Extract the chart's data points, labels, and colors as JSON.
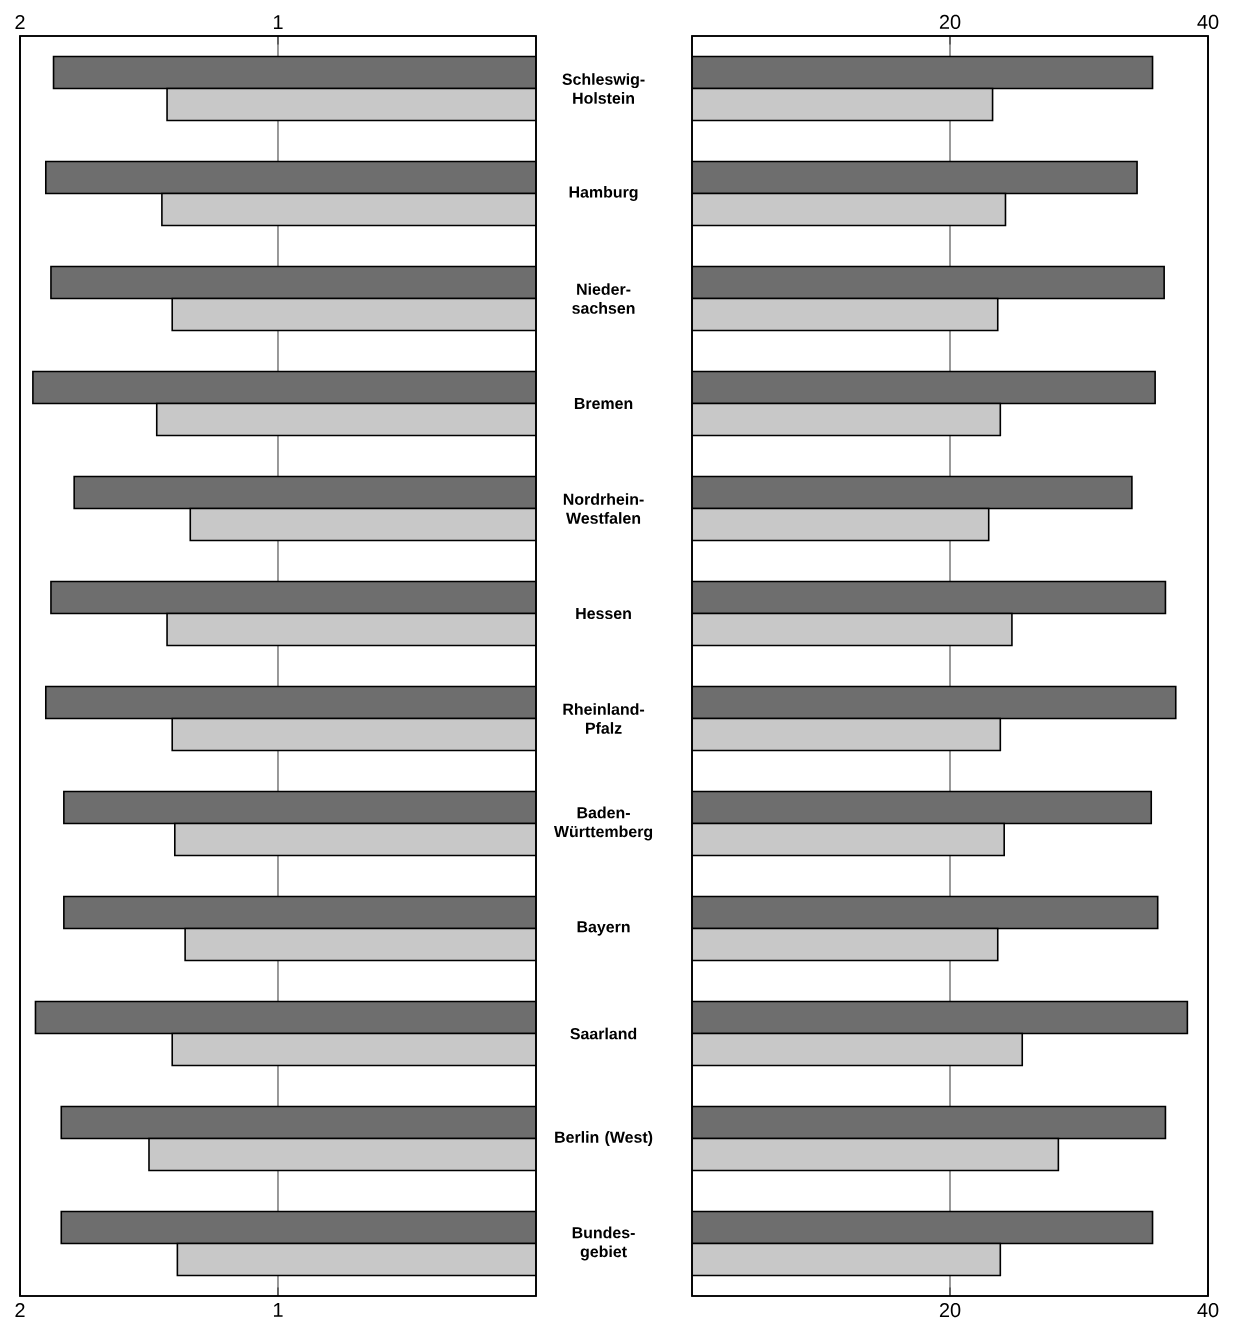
{
  "chart_data": [
    {
      "type": "bar",
      "orientation": "horizontal",
      "categories": [
        "Schleswig-Holstein",
        "Hamburg",
        "Nieder-sachsen",
        "Bremen",
        "Nordrhein-Westfalen",
        "Hessen",
        "Rheinland-Pfalz",
        "Baden-Württemberg",
        "Bayern",
        "Saarland",
        "Berlin (West)",
        "Bundes-gebiet"
      ],
      "series": [
        {
          "color": "#6e6e6e",
          "values": [
            1.87,
            1.9,
            1.88,
            1.95,
            1.79,
            1.88,
            1.9,
            1.83,
            1.83,
            1.94,
            1.84,
            1.84
          ]
        },
        {
          "color": "#c8c8c8",
          "values": [
            1.43,
            1.45,
            1.41,
            1.47,
            1.34,
            1.43,
            1.41,
            1.4,
            1.36,
            1.41,
            1.5,
            1.39
          ]
        }
      ],
      "xlim": [
        2,
        0
      ],
      "xticks": [
        2,
        1
      ],
      "x2lim": [
        2,
        0
      ],
      "x2ticks": [
        2,
        1
      ],
      "grid": "x"
    },
    {
      "type": "bar",
      "orientation": "horizontal",
      "series": [
        {
          "color": "#6e6e6e",
          "values": [
            35.7,
            34.5,
            36.6,
            35.9,
            34.1,
            36.7,
            37.5,
            35.6,
            36.1,
            38.4,
            36.7,
            35.7
          ]
        },
        {
          "color": "#c8c8c8",
          "values": [
            23.3,
            24.3,
            23.7,
            23.9,
            23.0,
            24.8,
            23.9,
            24.2,
            23.7,
            25.6,
            28.4,
            23.9
          ]
        }
      ],
      "xlim": [
        0,
        40
      ],
      "xticks": [
        20,
        40
      ],
      "x2lim": [
        0,
        40
      ],
      "x2ticks": [
        20,
        40
      ],
      "grid": "x",
      "tick_labels": "x"
    }
  ]
}
